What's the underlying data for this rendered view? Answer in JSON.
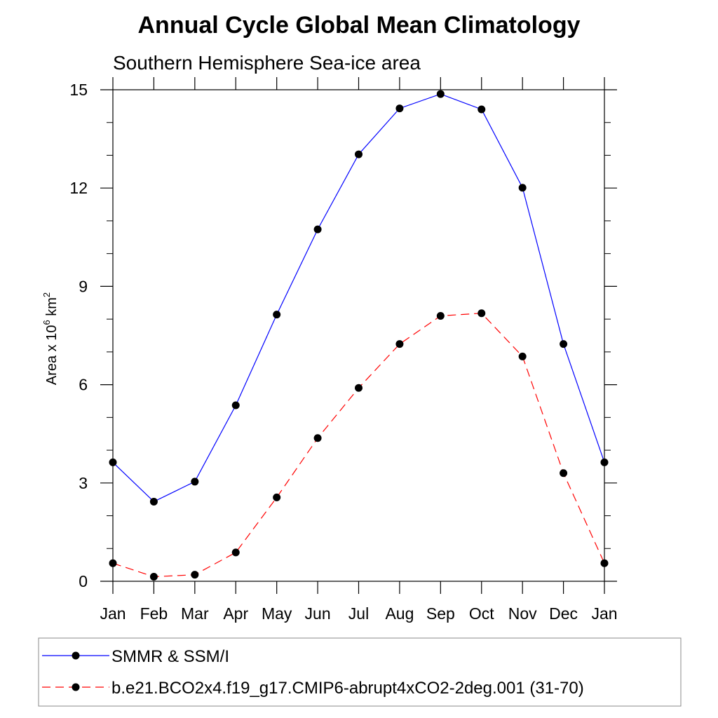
{
  "chart_data": {
    "type": "line",
    "title": "Annual Cycle Global Mean Climatology",
    "subtitle": "Southern Hemisphere Sea-ice area",
    "ylabel": {
      "prefix": "Area x 10",
      "exp1": "6",
      "mid": " km",
      "exp2": "2"
    },
    "categories": [
      "Jan",
      "Feb",
      "Mar",
      "Apr",
      "May",
      "Jun",
      "Jul",
      "Aug",
      "Sep",
      "Oct",
      "Nov",
      "Dec",
      "Jan"
    ],
    "yticks": [
      0,
      3,
      6,
      9,
      12,
      15
    ],
    "ylim": [
      0,
      15
    ],
    "series": [
      {
        "name": "SMMR & SSM/I",
        "color": "#0000ff",
        "dashed": false,
        "values": [
          3.63,
          2.43,
          3.04,
          5.37,
          8.14,
          10.74,
          13.03,
          14.43,
          14.87,
          14.4,
          12.01,
          7.24,
          3.63
        ]
      },
      {
        "name": "b.e21.BCO2x4.f19_g17.CMIP6-abrupt4xCO2-2deg.001 (31-70)",
        "color": "#ff0000",
        "dashed": true,
        "values": [
          0.55,
          0.14,
          0.2,
          0.88,
          2.56,
          4.37,
          5.9,
          7.24,
          8.1,
          8.18,
          6.86,
          3.3,
          0.55
        ]
      }
    ]
  }
}
